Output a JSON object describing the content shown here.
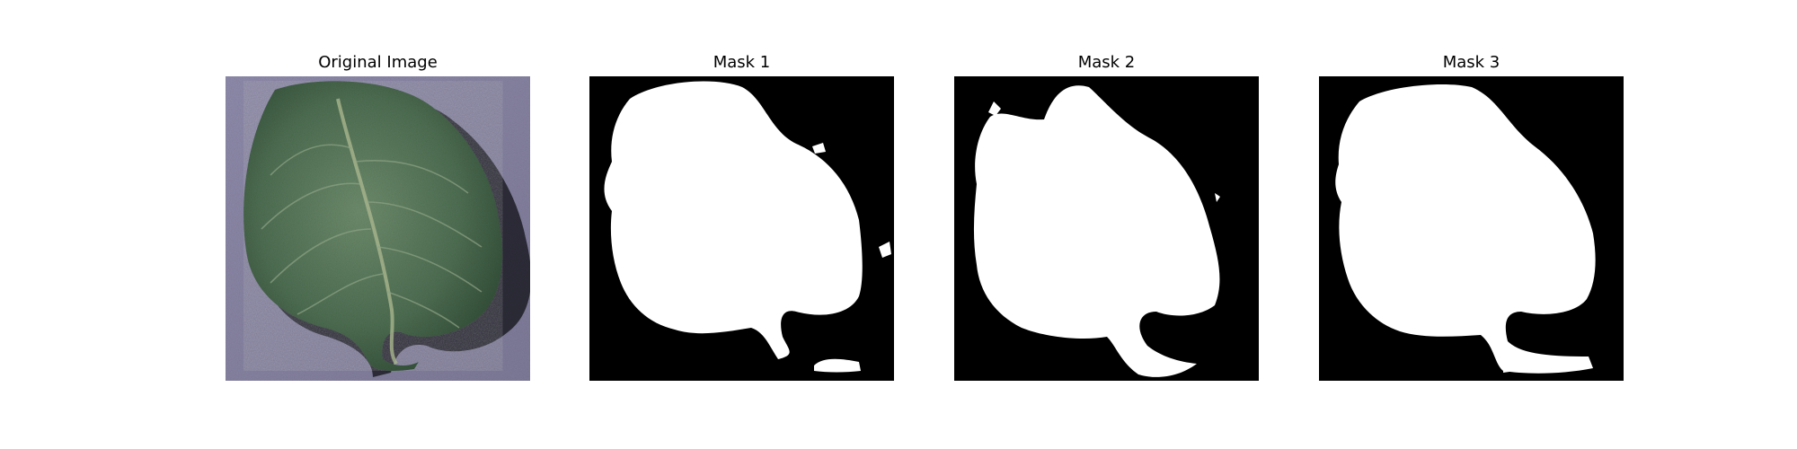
{
  "figure": {
    "panels": [
      {
        "title": "Original Image"
      },
      {
        "title": "Mask 1"
      },
      {
        "title": "Mask 2"
      },
      {
        "title": "Mask 3"
      }
    ]
  },
  "colors": {
    "background": "#ffffff",
    "mask_background": "#000000",
    "mask_foreground": "#ffffff",
    "leaf_dark": "#2f4a34",
    "leaf_mid": "#4e6e52",
    "leaf_light": "#7d9a7b",
    "backdrop": "#8a87a6",
    "shadow": "#1c1c24"
  }
}
